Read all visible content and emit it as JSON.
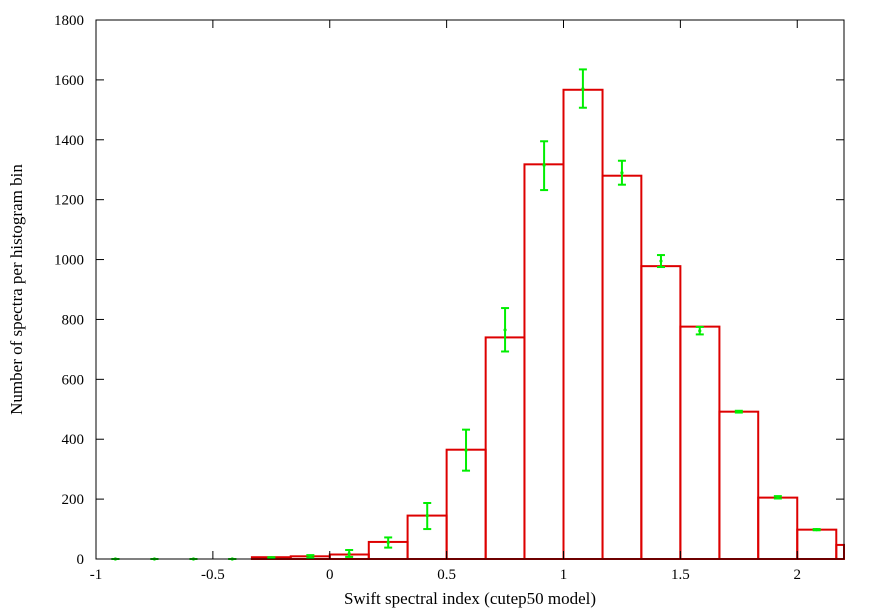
{
  "chart_data": {
    "type": "bar",
    "title": "",
    "xlabel": "Swift spectral index (cutep50 model)",
    "ylabel": "Number of spectra per histogram bin",
    "xlim": [
      -1,
      2.2
    ],
    "ylim": [
      0,
      1800
    ],
    "x_ticks": [
      -1,
      -0.5,
      0,
      0.5,
      1,
      1.5,
      2
    ],
    "x_tick_labels": [
      "-1",
      "-0.5",
      "0",
      "0.5",
      "1",
      "1.5",
      "2"
    ],
    "y_ticks": [
      0,
      200,
      400,
      600,
      800,
      1000,
      1200,
      1400,
      1600,
      1800
    ],
    "y_tick_labels": [
      "0",
      "200",
      "400",
      "600",
      "800",
      "1000",
      "1200",
      "1400",
      "1600",
      "1800"
    ],
    "bin_width": 0.1667,
    "bars": [
      {
        "x0": -1.0,
        "x1": -0.833,
        "value": 0
      },
      {
        "x0": -0.833,
        "x1": -0.667,
        "value": 0
      },
      {
        "x0": -0.667,
        "x1": -0.5,
        "value": 0
      },
      {
        "x0": -0.5,
        "x1": -0.333,
        "value": 0
      },
      {
        "x0": -0.333,
        "x1": -0.167,
        "value": 6
      },
      {
        "x0": -0.167,
        "x1": 0.0,
        "value": 9
      },
      {
        "x0": 0.0,
        "x1": 0.167,
        "value": 15
      },
      {
        "x0": 0.167,
        "x1": 0.333,
        "value": 57
      },
      {
        "x0": 0.333,
        "x1": 0.5,
        "value": 145
      },
      {
        "x0": 0.5,
        "x1": 0.667,
        "value": 365
      },
      {
        "x0": 0.667,
        "x1": 0.833,
        "value": 740
      },
      {
        "x0": 0.833,
        "x1": 1.0,
        "value": 1318
      },
      {
        "x0": 1.0,
        "x1": 1.167,
        "value": 1567
      },
      {
        "x0": 1.167,
        "x1": 1.333,
        "value": 1280
      },
      {
        "x0": 1.333,
        "x1": 1.5,
        "value": 978
      },
      {
        "x0": 1.5,
        "x1": 1.667,
        "value": 776
      },
      {
        "x0": 1.667,
        "x1": 1.833,
        "value": 492
      },
      {
        "x0": 1.833,
        "x1": 2.0,
        "value": 205
      },
      {
        "x0": 2.0,
        "x1": 2.167,
        "value": 98
      },
      {
        "x0": 2.167,
        "x1": 2.2,
        "value": 47
      }
    ],
    "error_bars": [
      {
        "x": -0.917,
        "y": 0,
        "low": 0,
        "high": 0
      },
      {
        "x": -0.75,
        "y": 0,
        "low": 0,
        "high": 0
      },
      {
        "x": -0.583,
        "y": 0,
        "low": 0,
        "high": 0
      },
      {
        "x": -0.417,
        "y": 0,
        "low": 0,
        "high": 0
      },
      {
        "x": -0.25,
        "y": 4,
        "low": 2,
        "high": 6
      },
      {
        "x": -0.083,
        "y": 9,
        "low": 5,
        "high": 13
      },
      {
        "x": 0.083,
        "y": 18,
        "low": 7,
        "high": 30
      },
      {
        "x": 0.25,
        "y": 55,
        "low": 38,
        "high": 72
      },
      {
        "x": 0.417,
        "y": 145,
        "low": 100,
        "high": 187
      },
      {
        "x": 0.583,
        "y": 363,
        "low": 295,
        "high": 432
      },
      {
        "x": 0.75,
        "y": 765,
        "low": 693,
        "high": 838
      },
      {
        "x": 0.917,
        "y": 1315,
        "low": 1232,
        "high": 1395
      },
      {
        "x": 1.083,
        "y": 1570,
        "low": 1507,
        "high": 1635
      },
      {
        "x": 1.25,
        "y": 1290,
        "low": 1250,
        "high": 1330
      },
      {
        "x": 1.417,
        "y": 995,
        "low": 975,
        "high": 1015
      },
      {
        "x": 1.583,
        "y": 762,
        "low": 750,
        "high": 775
      },
      {
        "x": 1.75,
        "y": 492,
        "low": 489,
        "high": 495
      },
      {
        "x": 1.917,
        "y": 206,
        "low": 202,
        "high": 210
      },
      {
        "x": 2.083,
        "y": 98,
        "low": 96,
        "high": 100
      }
    ],
    "colors": {
      "bars": "#dd0000",
      "error_bars": "#00ee00",
      "axes": "#000000"
    },
    "grid": false,
    "legend": "none"
  }
}
